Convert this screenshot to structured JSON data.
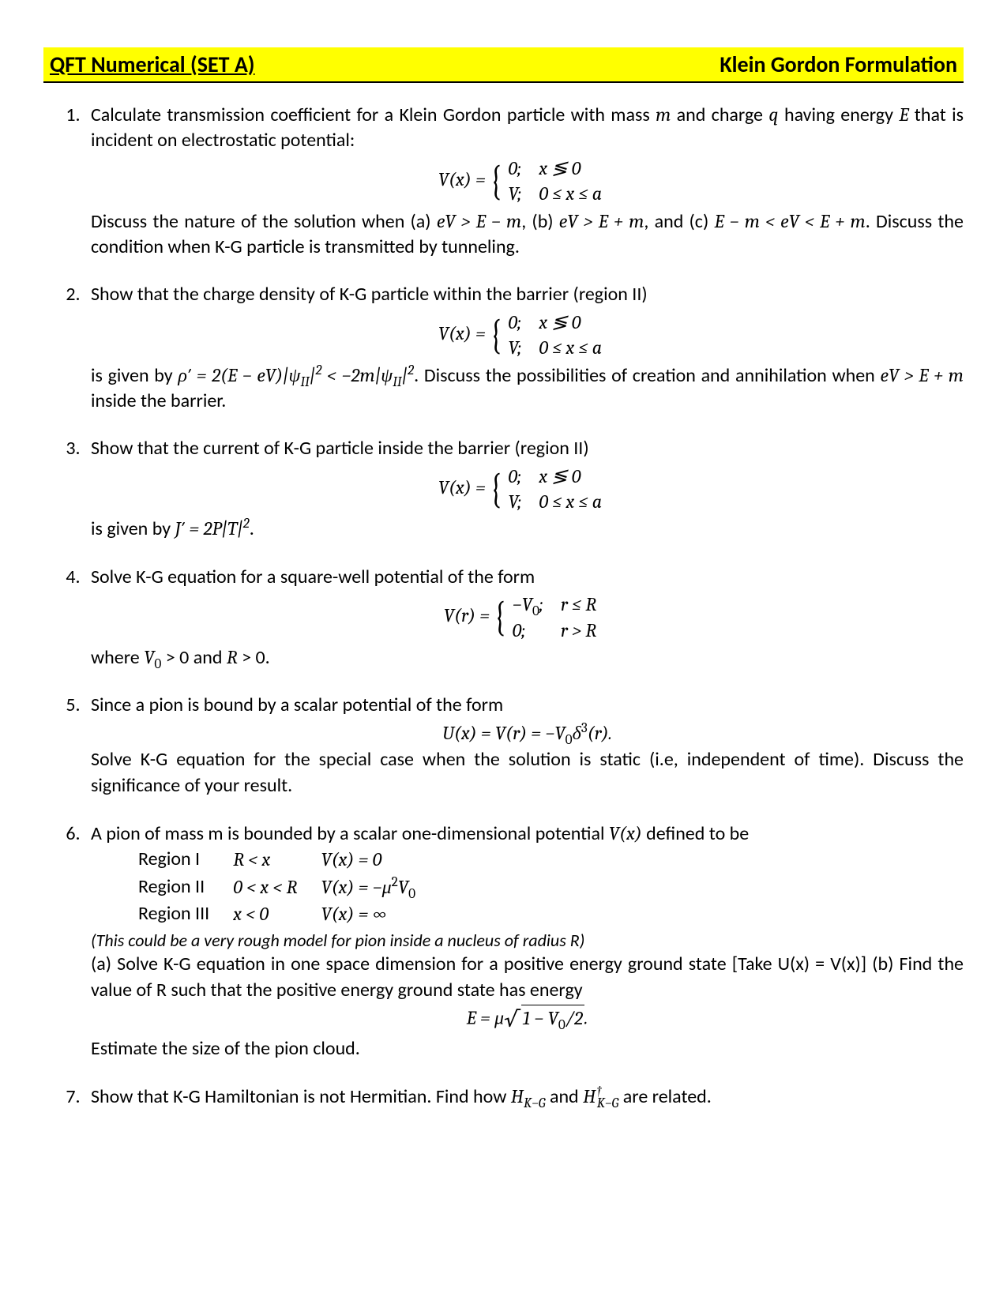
{
  "header": {
    "left": "QFT Numerical (SET A)",
    "right": "Klein Gordon Formulation",
    "bg_color": "#ffff00",
    "underline_color": "#000000"
  },
  "problems": {
    "p1": {
      "intro_a": "Calculate transmission coefficient for a Klein Gordon particle with mass ",
      "m": "m",
      "intro_b": " and charge ",
      "q": "q",
      "intro_c": " having energy ",
      "E": "E",
      "intro_d": " that is incident on electrostatic potential:",
      "eq_lhs": "V(x)  = ",
      "row1a": "0;",
      "row1b": "x ≶ 0",
      "row2a": "V;",
      "row2b": "0 ≤ x ≤ a",
      "discuss_a": "Discuss the nature of the solution when (a) ",
      "cond_a": "eV > E − m",
      "discuss_b": ", (b) ",
      "cond_b": "eV > E + m",
      "discuss_c": ", and (c) ",
      "cond_c": "E − m < eV < E + m",
      "discuss_d": ". Discuss the condition when K-G particle is transmitted by tunneling."
    },
    "p2": {
      "intro": "Show that the charge density of K-G particle within the barrier (region II)",
      "eq_lhs": "V(x)  = ",
      "row1a": "0;",
      "row1b": "x ≶ 0",
      "row2a": "V;",
      "row2b": "0 ≤ x ≤ a",
      "given_a": "is given by ",
      "expr": "ρ′ = 2(E − eV)|ψ",
      "sub1": "II",
      "expr_b": "|",
      "sup1": "2",
      "expr_c": " < −2m|ψ",
      "sub2": "II",
      "expr_d": "|",
      "sup2": "2",
      "given_b": ". Discuss the possibilities of creation and annihilation when ",
      "cond": "eV > E + m",
      "given_c": " inside the barrier."
    },
    "p3": {
      "intro": "Show that the current of K-G particle inside the barrier (region II)",
      "eq_lhs": "V(x)  = ",
      "row1a": "0;",
      "row1b": "x ≶ 0",
      "row2a": "V;",
      "row2b": "0 ≤ x ≤ a",
      "given_a": "is given by ",
      "expr": "J′ = 2P|T|",
      "sup": "2",
      "given_b": "."
    },
    "p4": {
      "intro": "Solve K-G equation for a square-well potential of the form",
      "eq_lhs": "V(r)  = ",
      "row1a": "−V",
      "row1a_sub": "0",
      "row1a_tail": ";",
      "row1b": "r ≤ R",
      "row2a": "0;",
      "row2b": "r > R",
      "where_a": "where ",
      "v0": "V",
      "v0_sub": "0",
      "where_b": " > 0 and ",
      "R": "R",
      "where_c": " > 0."
    },
    "p5": {
      "intro": "Since a pion is bound by a scalar potential of the form",
      "eq": "U(x) = V(r) = −V",
      "eq_sub": "0",
      "eq_tail": "δ",
      "eq_sup": "3",
      "eq_tail2": "(r).",
      "body": "Solve K-G equation for the special case when the solution is static (i.e, independent of time). Discuss the significance of your result."
    },
    "p6": {
      "intro_a": "A pion of mass m is bounded by a scalar one-dimensional potential ",
      "vx": "V(x)",
      "intro_b": " defined to be",
      "regions": {
        "r1_label": "Region I",
        "r1_cond": "R < x",
        "r1_val": "V(x) = 0",
        "r2_label": "Region II",
        "r2_cond": "0 < x < R",
        "r2_val_a": "V(x) = −μ",
        "r2_sup": "2",
        "r2_val_b": "V",
        "r2_sub": "0",
        "r3_label": "Region III",
        "r3_cond": "x < 0",
        "r3_val": "V(x) = ∞"
      },
      "note": "(This could be a very rough model for pion inside a nucleus of radius R)",
      "body": "(a) Solve K-G equation in one space dimension for a positive energy ground state [Take U(x) = V(x)] (b) Find the value of R such that the positive energy ground state has energy",
      "eq_a": "E =  μ",
      "sqrt_body_a": "1 − V",
      "sqrt_sub": "0",
      "sqrt_body_b": "/2",
      "eq_tail": ".",
      "closing": "Estimate the size of the pion cloud."
    },
    "p7": {
      "a": "Show that K-G Hamiltonian is not Hermitian. Find how ",
      "h1": "H",
      "h1_sub": "K−G",
      "b": " and ",
      "h2": "H",
      "h2_sup": "†",
      "h2_sub": "K−G",
      "c": " are related."
    }
  }
}
